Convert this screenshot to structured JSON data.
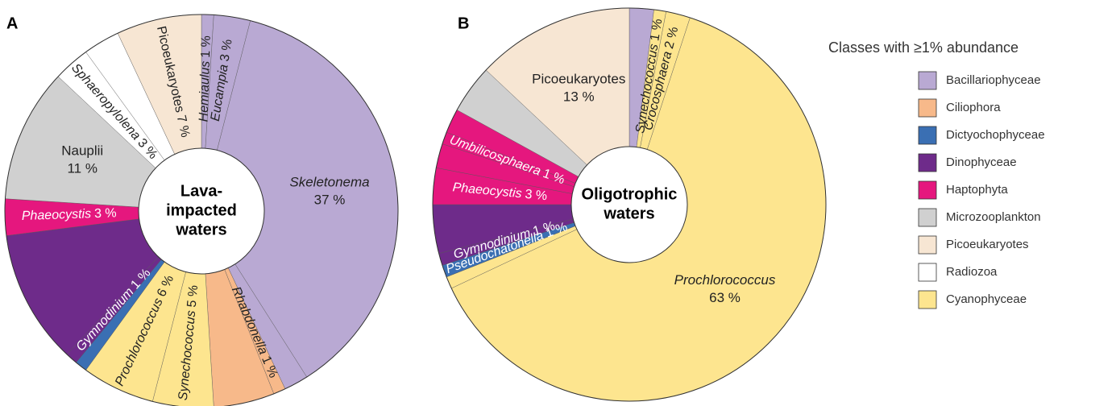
{
  "panels": [
    "A",
    "B"
  ],
  "legend": {
    "title": "Classes with ≥1% abundance",
    "classes": [
      {
        "name": "Bacillariophyceae",
        "color": "#b9a9d3"
      },
      {
        "name": "Ciliophora",
        "color": "#f7b98a"
      },
      {
        "name": "Dictyochophyceae",
        "color": "#3a6fb3"
      },
      {
        "name": "Dinophyceae",
        "color": "#6e2b8a"
      },
      {
        "name": "Haptophyta",
        "color": "#e5177e"
      },
      {
        "name": "Microzooplankton",
        "color": "#d0d0d0"
      },
      {
        "name": "Picoeukaryotes",
        "color": "#f7e6d3"
      },
      {
        "name": "Radiozoa",
        "color": "#ffffff"
      },
      {
        "name": "Cyanophyceae",
        "color": "#fde58f"
      }
    ]
  },
  "chart_data": [
    {
      "type": "donut",
      "center_label": [
        "Lava-",
        "impacted",
        "waters"
      ],
      "categories": [
        "Hemiaulus",
        "Eucampia",
        "Skeletonema",
        null,
        "Rhabdonella",
        null,
        "Synechococcus",
        "Prochlorococcus",
        null,
        "Gymnodinium",
        null,
        "Phaeocystis",
        "Nauplii",
        "Sphaeropylolena",
        null,
        "Picoeukaryotes"
      ],
      "values": [
        1,
        3,
        37,
        2,
        1,
        5,
        5,
        6,
        1,
        1,
        11,
        3,
        11,
        3,
        3,
        7
      ],
      "value_labels": [
        "1 %",
        "3 %",
        "37 %",
        null,
        "1 %",
        null,
        "5 %",
        "6 %",
        null,
        "1 %",
        null,
        "3 %",
        "11 %",
        "3 %",
        null,
        "7 %"
      ],
      "class": [
        0,
        0,
        0,
        0,
        1,
        1,
        8,
        8,
        2,
        3,
        3,
        4,
        5,
        7,
        7,
        6
      ],
      "italic": [
        true,
        true,
        true,
        true,
        true,
        true,
        true,
        true,
        true,
        true,
        true,
        true,
        false,
        true,
        true,
        false
      ]
    },
    {
      "type": "donut",
      "center_label": [
        "Oligotrophic",
        "waters"
      ],
      "categories": [
        null,
        "Synechococcus",
        "Crocosphaera",
        "Prochlorococcus",
        null,
        "Pseudochatonella",
        "Gymnodinium",
        null,
        "Phaeocystis",
        null,
        "Umbilicosphaera",
        null,
        null,
        "Picoeukaryotes"
      ],
      "values": [
        2,
        1,
        2,
        63,
        1,
        1,
        1,
        4,
        3,
        2,
        1,
        2,
        4,
        13
      ],
      "value_labels": [
        null,
        "1 %",
        "2 %",
        "63 %",
        null,
        "1 %",
        "1 %",
        null,
        "3 %",
        null,
        "1 %",
        null,
        null,
        "13 %"
      ],
      "class": [
        0,
        8,
        8,
        8,
        8,
        2,
        3,
        3,
        4,
        4,
        4,
        4,
        5,
        6
      ],
      "italic": [
        true,
        true,
        true,
        true,
        true,
        true,
        true,
        true,
        true,
        true,
        true,
        true,
        true,
        false
      ]
    }
  ]
}
